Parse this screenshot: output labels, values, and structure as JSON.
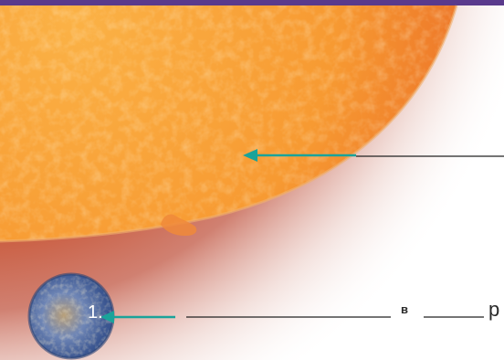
{
  "labels": {
    "number": "1.",
    "word_start": "в",
    "word_end": "р"
  },
  "colors": {
    "sun_core": "#f7a030",
    "sun_edge": "#d85a28",
    "corona": "#b85a48",
    "arrow": "#1aa39a",
    "blank_line": "#222222",
    "top_band": "#5a3a8c",
    "mercury_blue": "#4d74b8",
    "mercury_tan": "#c9a878"
  }
}
